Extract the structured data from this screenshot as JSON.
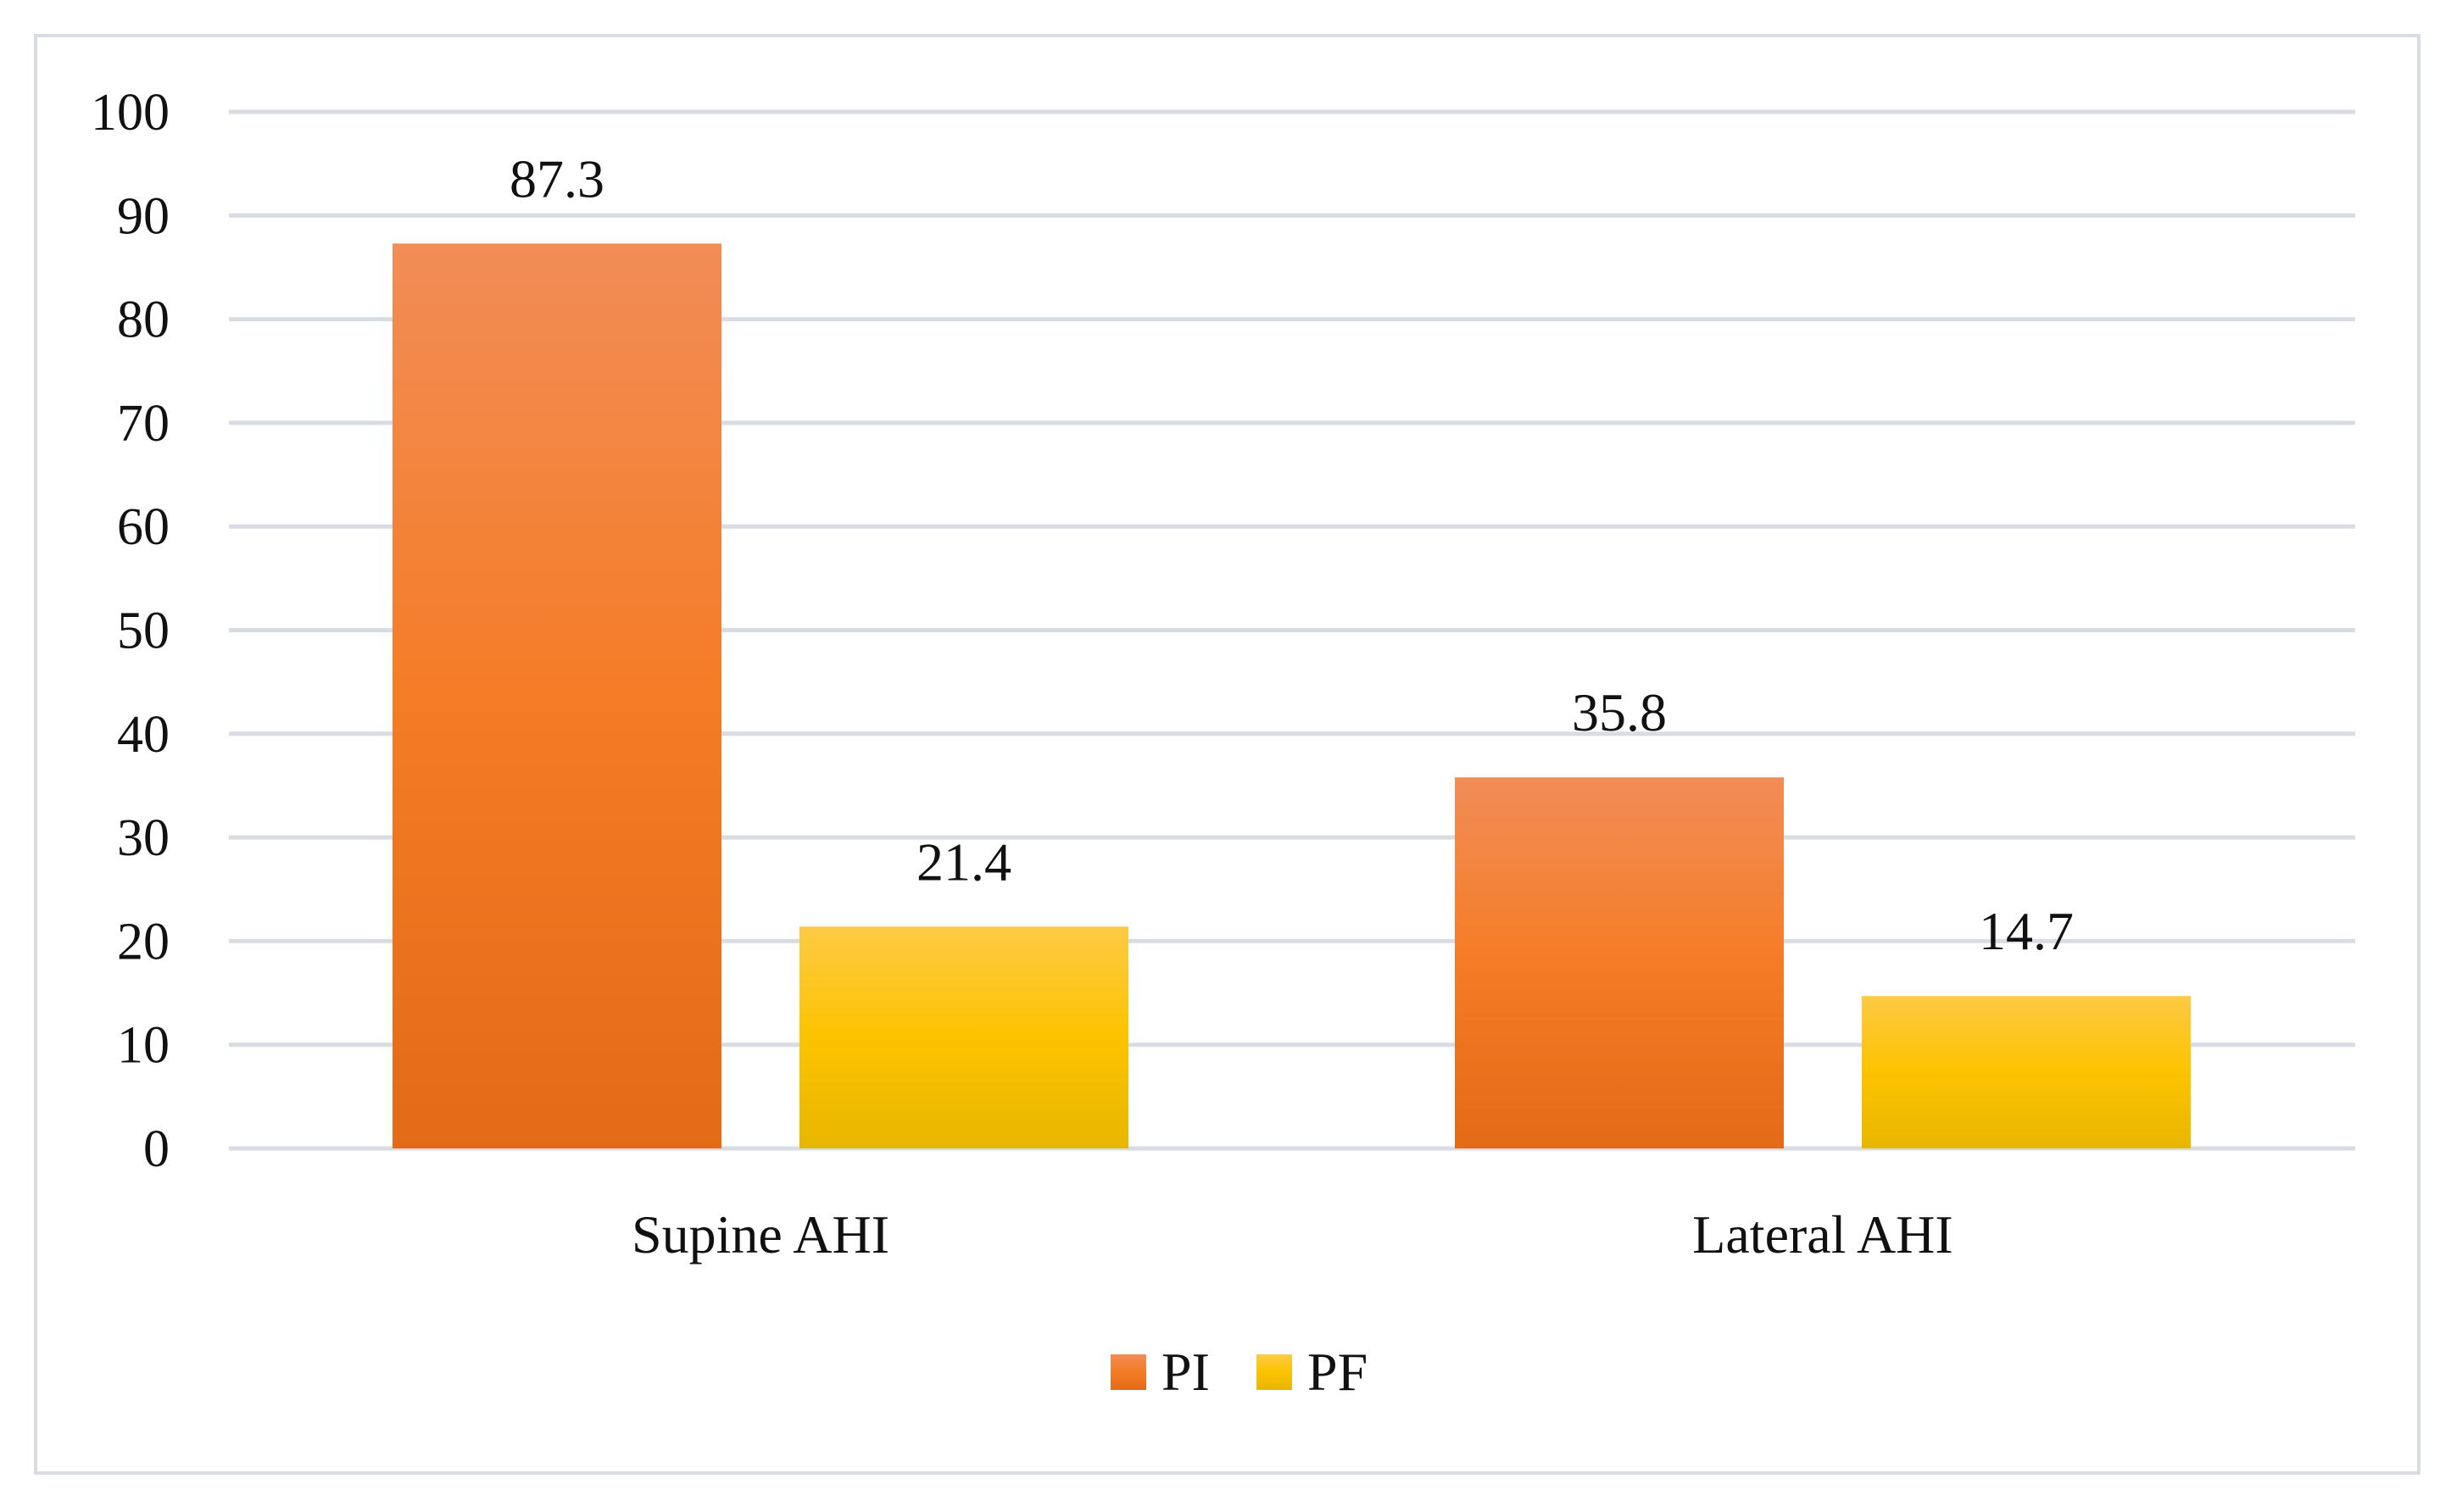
{
  "chart_data": {
    "type": "bar",
    "categories": [
      "Supine AHI",
      "Lateral AHI"
    ],
    "series": [
      {
        "name": "PI",
        "values": [
          87.3,
          35.8
        ],
        "color": "#ef7a2a"
      },
      {
        "name": "PF",
        "values": [
          21.4,
          14.7
        ],
        "color": "#fcc40a"
      }
    ],
    "data_labels": [
      [
        "87.3",
        "35.8"
      ],
      [
        "21.4",
        "14.7"
      ]
    ],
    "title": "",
    "xlabel": "",
    "ylabel": "",
    "ylim": [
      0,
      100
    ],
    "yticks": [
      0,
      10,
      20,
      30,
      40,
      50,
      60,
      70,
      80,
      90,
      100
    ],
    "grid": true,
    "legend": "bottom-center"
  }
}
